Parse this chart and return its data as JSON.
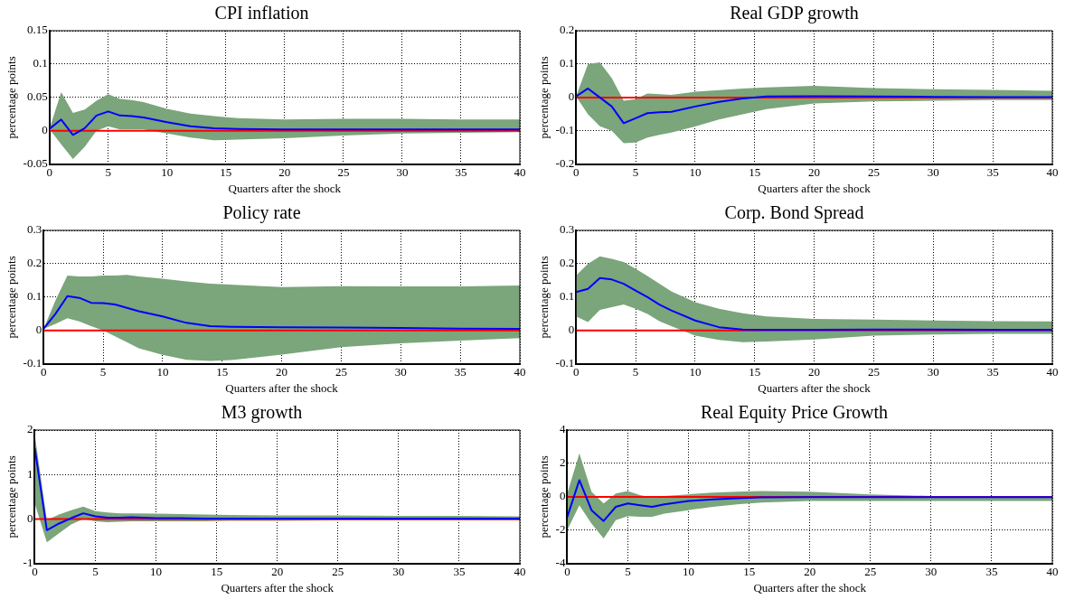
{
  "chart_data": [
    {
      "type": "line",
      "title": "CPI inflation",
      "xlabel": "Quarters after the shock",
      "ylabel": "percentage points",
      "x": [
        0,
        1,
        2,
        3,
        4,
        5,
        6,
        7,
        8,
        10,
        12,
        14,
        16,
        20,
        25,
        30,
        35,
        40
      ],
      "xlim": [
        0,
        40
      ],
      "xticks": [
        0,
        5,
        10,
        15,
        20,
        25,
        30,
        35,
        40
      ],
      "ylim": [
        -0.05,
        0.15
      ],
      "yticks": [
        -0.05,
        0,
        0.05,
        0.1,
        0.15
      ],
      "grid": true,
      "legend": false,
      "line_style": "solid",
      "marker": "none",
      "series": [
        {
          "color": "#0000ff",
          "values": [
            0.003,
            0.017,
            -0.006,
            0.004,
            0.023,
            0.029,
            0.023,
            0.022,
            0.02,
            0.013,
            0.007,
            0.004,
            0.003,
            0.002,
            0.002,
            0.002,
            0.002,
            0.002
          ],
          "upper": [
            0.003,
            0.058,
            0.027,
            0.032,
            0.045,
            0.055,
            0.048,
            0.046,
            0.043,
            0.033,
            0.026,
            0.022,
            0.019,
            0.017,
            0.018,
            0.018,
            0.017,
            0.017
          ],
          "lower": [
            0.003,
            -0.02,
            -0.042,
            -0.024,
            0,
            0.007,
            0.002,
            0.002,
            0.002,
            -0.004,
            -0.01,
            -0.014,
            -0.013,
            -0.011,
            -0.007,
            -0.004,
            -0.003,
            -0.002
          ]
        }
      ],
      "ref_lines": [
        {
          "axis": "y",
          "value": 0,
          "color": "#ff0000"
        }
      ]
    },
    {
      "type": "line",
      "title": "Real GDP growth",
      "xlabel": "Quarters after the shock",
      "ylabel": "percentage points",
      "x": [
        0,
        1,
        2,
        3,
        4,
        5,
        6,
        7,
        8,
        10,
        12,
        14,
        16,
        20,
        25,
        30,
        35,
        40
      ],
      "xlim": [
        0,
        40
      ],
      "xticks": [
        0,
        5,
        10,
        15,
        20,
        25,
        30,
        35,
        40
      ],
      "ylim": [
        -0.2,
        0.2
      ],
      "yticks": [
        -0.2,
        -0.1,
        0,
        0.1,
        0.2
      ],
      "grid": true,
      "legend": false,
      "line_style": "solid",
      "marker": "none",
      "series": [
        {
          "color": "#0000ff",
          "values": [
            0.003,
            0.027,
            0,
            -0.027,
            -0.077,
            -0.062,
            -0.047,
            -0.044,
            -0.043,
            -0.027,
            -0.013,
            -0.003,
            0.003,
            0.004,
            0.003,
            0.002,
            0.001,
            0.001
          ],
          "upper": [
            0.003,
            0.1,
            0.105,
            0.058,
            -0.01,
            -0.005,
            0.012,
            0.01,
            0.008,
            0.017,
            0.022,
            0.027,
            0.03,
            0.035,
            0.028,
            0.025,
            0.023,
            0.02
          ],
          "lower": [
            0.003,
            -0.05,
            -0.086,
            -0.1,
            -0.137,
            -0.135,
            -0.12,
            -0.112,
            -0.105,
            -0.087,
            -0.066,
            -0.05,
            -0.035,
            -0.018,
            -0.012,
            -0.01,
            -0.008,
            -0.008
          ]
        }
      ],
      "ref_lines": [
        {
          "axis": "y",
          "value": 0,
          "color": "#ff0000"
        }
      ]
    },
    {
      "type": "line",
      "title": "Policy rate",
      "xlabel": "Quarters after the shock",
      "ylabel": "percentage points",
      "x": [
        0,
        1,
        2,
        3,
        4,
        5,
        6,
        7,
        8,
        10,
        12,
        14,
        16,
        20,
        25,
        30,
        35,
        40
      ],
      "xlim": [
        0,
        40
      ],
      "xticks": [
        0,
        5,
        10,
        15,
        20,
        25,
        30,
        35,
        40
      ],
      "ylim": [
        -0.1,
        0.3
      ],
      "yticks": [
        -0.1,
        0,
        0.1,
        0.2,
        0.3
      ],
      "grid": true,
      "legend": false,
      "line_style": "solid",
      "marker": "none",
      "series": [
        {
          "color": "#0000ff",
          "values": [
            0.005,
            0.05,
            0.103,
            0.098,
            0.083,
            0.082,
            0.078,
            0.068,
            0.058,
            0.042,
            0.023,
            0.013,
            0.011,
            0.01,
            0.009,
            0.008,
            0.006,
            0.005
          ],
          "upper": [
            0.005,
            0.09,
            0.165,
            0.162,
            0.162,
            0.165,
            0.165,
            0.167,
            0.162,
            0.155,
            0.147,
            0.14,
            0.137,
            0.13,
            0.133,
            0.132,
            0.132,
            0.135
          ],
          "lower": [
            0.005,
            0.02,
            0.037,
            0.027,
            0.013,
            0,
            -0.017,
            -0.035,
            -0.053,
            -0.073,
            -0.088,
            -0.091,
            -0.088,
            -0.072,
            -0.05,
            -0.038,
            -0.03,
            -0.023
          ]
        }
      ],
      "ref_lines": [
        {
          "axis": "y",
          "value": 0,
          "color": "#ff0000"
        }
      ]
    },
    {
      "type": "line",
      "title": "Corp. Bond Spread",
      "xlabel": "Quarters after the shock",
      "ylabel": "percentage points",
      "x": [
        0,
        1,
        2,
        3,
        4,
        5,
        6,
        7,
        8,
        10,
        12,
        14,
        16,
        20,
        25,
        30,
        35,
        40
      ],
      "xlim": [
        0,
        40
      ],
      "xticks": [
        0,
        5,
        10,
        15,
        20,
        25,
        30,
        35,
        40
      ],
      "ylim": [
        -0.1,
        0.3
      ],
      "yticks": [
        -0.1,
        0,
        0.1,
        0.2,
        0.3
      ],
      "grid": true,
      "legend": false,
      "line_style": "solid",
      "marker": "none",
      "series": [
        {
          "color": "#0000ff",
          "values": [
            0.115,
            0.125,
            0.157,
            0.153,
            0.14,
            0.12,
            0.1,
            0.078,
            0.06,
            0.03,
            0.01,
            0.003,
            0.002,
            0.002,
            0.003,
            0.003,
            0.002,
            0.002
          ],
          "upper": [
            0.165,
            0.2,
            0.222,
            0.215,
            0.205,
            0.185,
            0.163,
            0.14,
            0.117,
            0.085,
            0.065,
            0.052,
            0.042,
            0.035,
            0.033,
            0.03,
            0.028,
            0.027
          ],
          "lower": [
            0.042,
            0.025,
            0.062,
            0.07,
            0.078,
            0.065,
            0.05,
            0.028,
            0.013,
            -0.015,
            -0.028,
            -0.035,
            -0.033,
            -0.027,
            -0.015,
            -0.012,
            -0.01,
            -0.01
          ]
        }
      ],
      "ref_lines": [
        {
          "axis": "y",
          "value": 0,
          "color": "#ff0000"
        }
      ]
    },
    {
      "type": "line",
      "title": "M3 growth",
      "xlabel": "Quarters after the shock",
      "ylabel": "percentage points",
      "x": [
        0,
        1,
        2,
        3,
        4,
        5,
        6,
        7,
        8,
        10,
        12,
        14,
        16,
        20,
        25,
        30,
        35,
        40
      ],
      "xlim": [
        0,
        40
      ],
      "xticks": [
        0,
        5,
        10,
        15,
        20,
        25,
        30,
        35,
        40
      ],
      "ylim": [
        -1,
        2
      ],
      "yticks": [
        -1,
        0,
        1,
        2
      ],
      "grid": true,
      "legend": false,
      "line_style": "solid",
      "marker": "none",
      "series": [
        {
          "color": "#0000ff",
          "values": [
            1.6,
            -0.25,
            -0.1,
            0.02,
            0.13,
            0.06,
            0.03,
            0.03,
            0.04,
            0.02,
            0.02,
            0.01,
            0.01,
            0.01,
            0.01,
            0.01,
            0.01,
            0.01
          ],
          "upper": [
            1.9,
            -0.02,
            0.1,
            0.2,
            0.28,
            0.18,
            0.15,
            0.13,
            0.13,
            0.12,
            0.11,
            0.1,
            0.09,
            0.08,
            0.08,
            0.07,
            0.07,
            0.06
          ],
          "lower": [
            0.35,
            -0.52,
            -0.32,
            -0.12,
            0,
            -0.05,
            -0.07,
            -0.06,
            -0.05,
            -0.05,
            -0.05,
            -0.05,
            -0.04,
            -0.04,
            -0.03,
            -0.03,
            -0.03,
            -0.03
          ]
        }
      ],
      "ref_lines": [
        {
          "axis": "y",
          "value": 0,
          "color": "#ff0000"
        }
      ]
    },
    {
      "type": "line",
      "title": "Real Equity Price Growth",
      "xlabel": "Quarters after the shock",
      "ylabel": "percentage points",
      "x": [
        0,
        1,
        2,
        3,
        4,
        5,
        6,
        7,
        8,
        10,
        12,
        14,
        16,
        20,
        25,
        30,
        35,
        40
      ],
      "xlim": [
        0,
        40
      ],
      "xticks": [
        0,
        5,
        10,
        15,
        20,
        25,
        30,
        35,
        40
      ],
      "ylim": [
        -4,
        4
      ],
      "yticks": [
        -4,
        -2,
        0,
        2,
        4
      ],
      "grid": true,
      "legend": false,
      "line_style": "solid",
      "marker": "none",
      "series": [
        {
          "color": "#0000ff",
          "values": [
            -1.2,
            1,
            -0.8,
            -1.45,
            -0.6,
            -0.4,
            -0.5,
            -0.6,
            -0.45,
            -0.25,
            -0.15,
            -0.08,
            -0.03,
            -0.02,
            -0.02,
            -0.02,
            -0.02,
            -0.02
          ],
          "upper": [
            0.2,
            2.6,
            0.3,
            -0.4,
            0.2,
            0.35,
            0.1,
            -0.05,
            0.05,
            0.15,
            0.25,
            0.3,
            0.35,
            0.3,
            0.15,
            0.05,
            0,
            -0.05
          ],
          "lower": [
            -2,
            -0.5,
            -1.6,
            -2.5,
            -1.4,
            -1.15,
            -1.2,
            -1.2,
            -1,
            -0.8,
            -0.6,
            -0.45,
            -0.35,
            -0.25,
            -0.25,
            -0.25,
            -0.25,
            -0.25
          ]
        }
      ],
      "ref_lines": [
        {
          "axis": "y",
          "value": 0,
          "color": "#ff0000"
        }
      ]
    }
  ]
}
